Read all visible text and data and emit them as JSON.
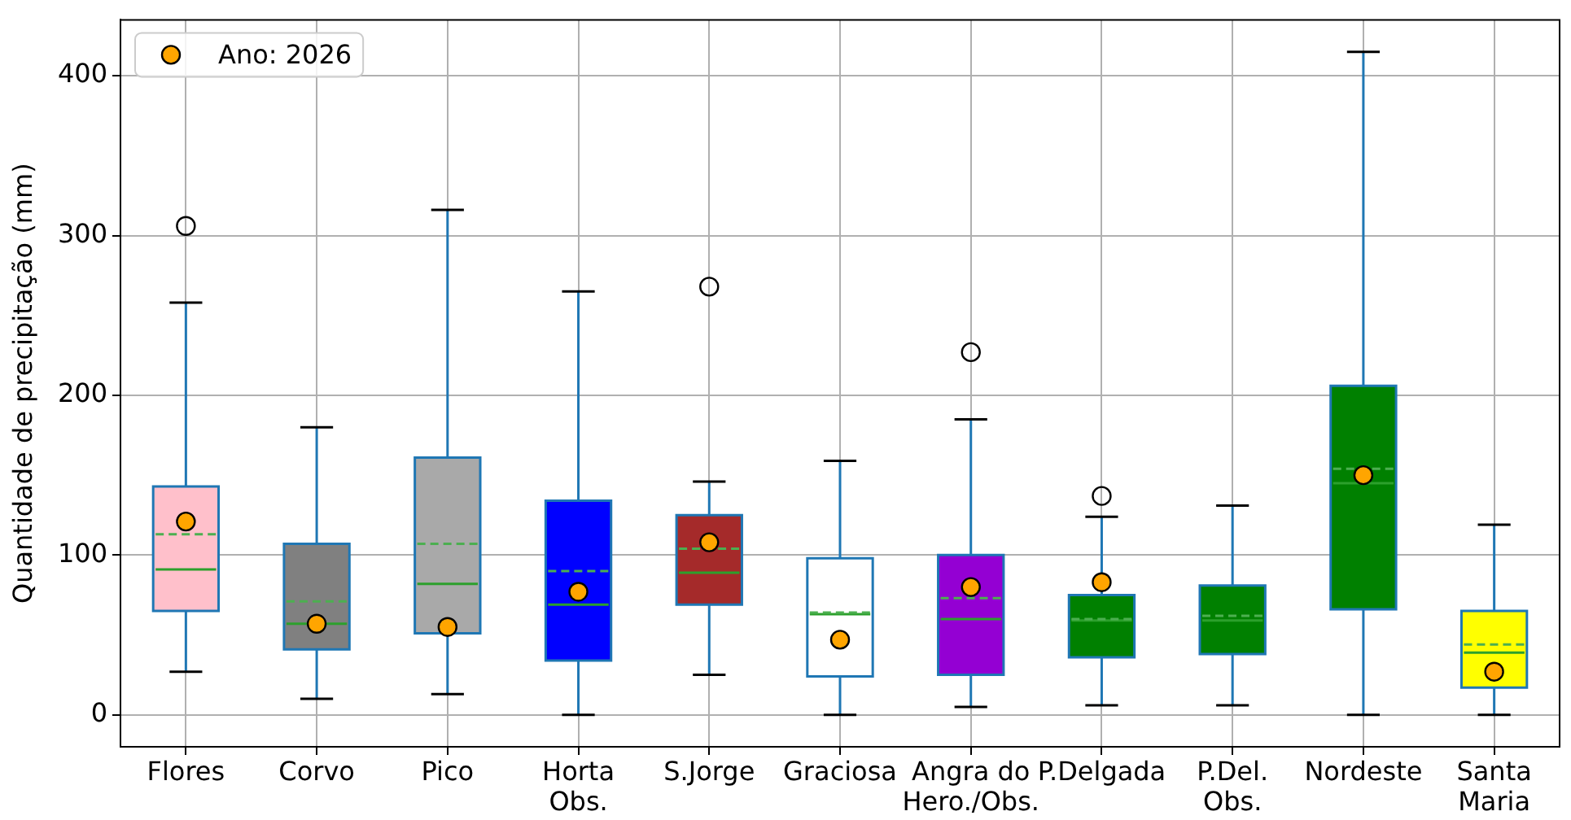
{
  "chart_data": {
    "type": "box",
    "ylabel": "Quantidade de precipitação (mm)",
    "categories": [
      "Flores",
      "Corvo",
      "Pico",
      "Horta\nObs.",
      "S.Jorge",
      "Graciosa",
      "Angra do\nHero./Obs.",
      "P.Delgada",
      "P.Del.\nObs.",
      "Nordeste",
      "Santa\nMaria"
    ],
    "ylim": [
      -20,
      435
    ],
    "yticks": [
      0,
      100,
      200,
      300,
      400
    ],
    "grid": true,
    "legend": "top left",
    "series": [
      {
        "type": "box",
        "color": "#1f77b4",
        "colors": [
          "#ffc0cb",
          "#808080",
          "#a9a9a9",
          "#0000ff",
          "#a52a2a",
          "#ffffff",
          "#9400d3",
          "#008000",
          "#008000",
          "#008000",
          "#ffff00"
        ],
        "boxes": [
          {
            "low": 27,
            "q1": 65,
            "median": 91,
            "q3": 143,
            "high": 258,
            "mean": 113,
            "outliers": [
              306
            ]
          },
          {
            "low": 10,
            "q1": 41,
            "median": 57,
            "q3": 107,
            "high": 180,
            "mean": 71
          },
          {
            "low": 13,
            "q1": 51,
            "median": 82,
            "q3": 161,
            "high": 316,
            "mean": 107
          },
          {
            "low": 0,
            "q1": 34,
            "median": 69,
            "q3": 134,
            "high": 265,
            "mean": 90
          },
          {
            "low": 25,
            "q1": 69,
            "median": 89,
            "q3": 125,
            "high": 146,
            "mean": 104,
            "outliers": [
              268
            ]
          },
          {
            "low": 0,
            "q1": 24,
            "median": 63,
            "q3": 98,
            "high": 159,
            "mean": 64
          },
          {
            "low": 5,
            "q1": 25,
            "median": 60,
            "q3": 100,
            "high": 185,
            "mean": 73,
            "outliers": [
              227
            ]
          },
          {
            "low": 6,
            "q1": 36,
            "median": 59,
            "q3": 75,
            "high": 124,
            "mean": 60,
            "outliers": [
              137
            ]
          },
          {
            "low": 6,
            "q1": 38,
            "median": 59,
            "q3": 81,
            "high": 131,
            "mean": 62
          },
          {
            "low": 0,
            "q1": 66,
            "median": 145,
            "q3": 206,
            "high": 415,
            "mean": 154
          },
          {
            "low": 0,
            "q1": 17,
            "median": 39,
            "q3": 65,
            "high": 119,
            "mean": 44
          }
        ]
      },
      {
        "type": "scatter",
        "name": "Ano: 2026",
        "color": "#ffa500",
        "marker": "circle",
        "x": [
          "Flores",
          "Corvo",
          "Pico",
          "Horta\nObs.",
          "S.Jorge",
          "Graciosa",
          "Angra do\nHero./Obs.",
          "P.Delgada",
          "P.Del.\nObs.",
          "Nordeste",
          "Santa\nMaria"
        ],
        "values": [
          121,
          57,
          55,
          77,
          108,
          47,
          80,
          83,
          null,
          150,
          27
        ]
      }
    ]
  }
}
